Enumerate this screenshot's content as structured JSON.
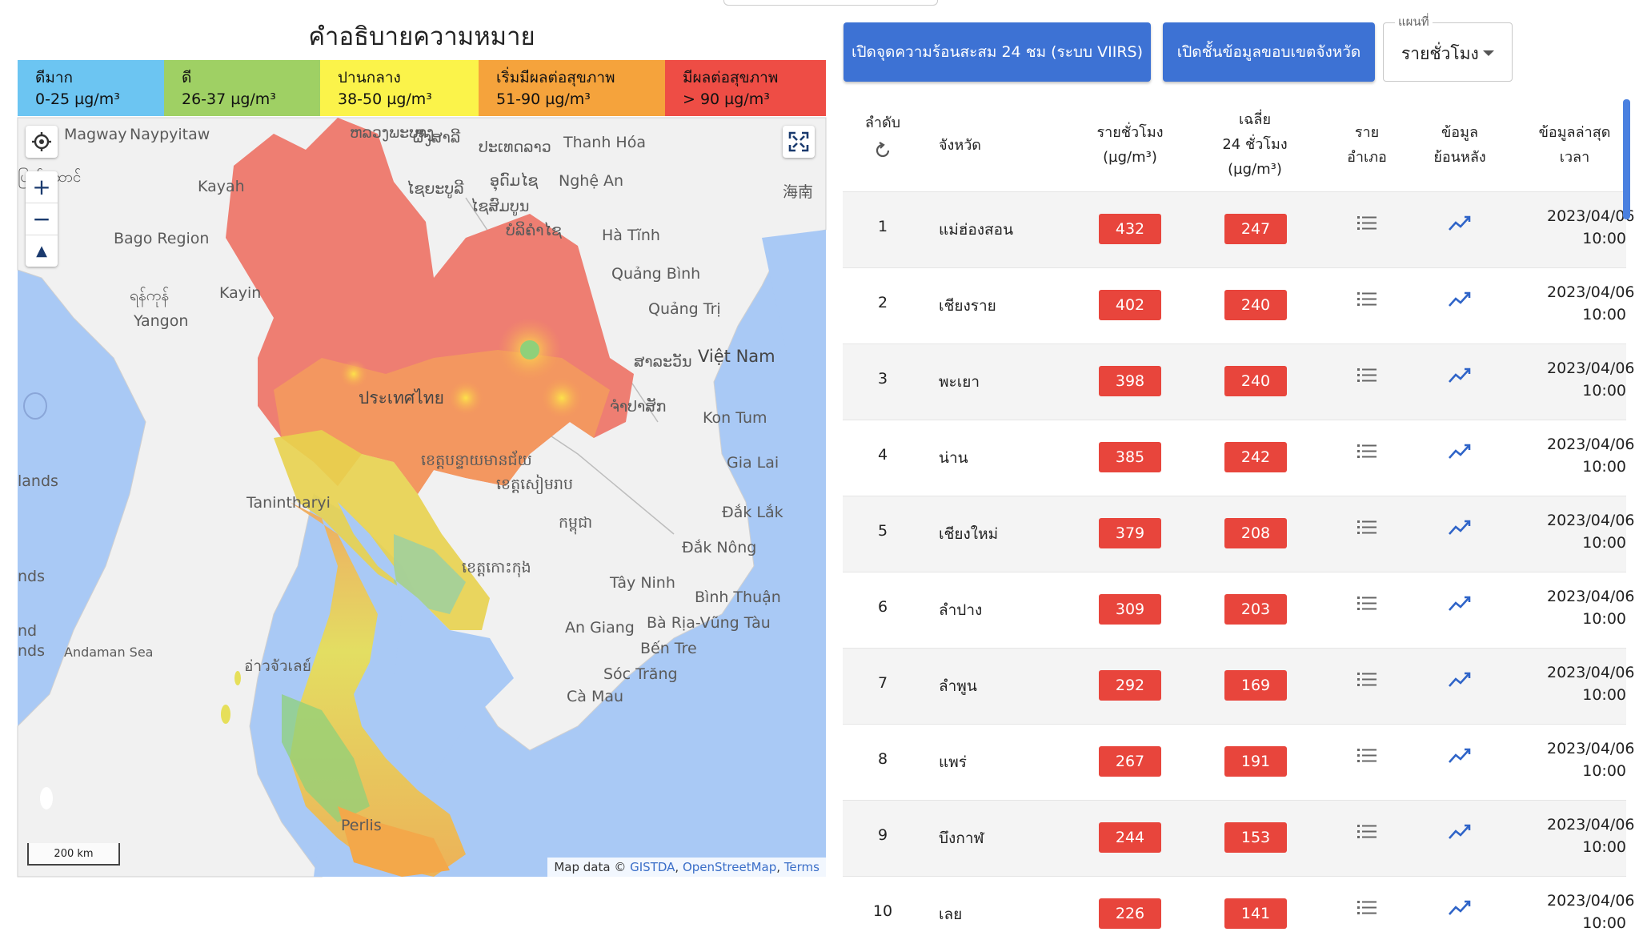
{
  "legend": {
    "title": "คำอธิบายความหมาย",
    "levels": [
      {
        "level": "ดีมาก",
        "range": "0-25 µg/m³",
        "color": "#6cc5f2"
      },
      {
        "level": "ดี",
        "range": "26-37 µg/m³",
        "color": "#9fd064"
      },
      {
        "level": "ปานกลาง",
        "range": "38-50 µg/m³",
        "color": "#fbf34a"
      },
      {
        "level": "เริ่มมีผลต่อสุขภาพ",
        "range": "51-90 µg/m³",
        "color": "#f5a33c"
      },
      {
        "level": "มีผลต่อสุขภาพ",
        "range": "> 90 µg/m³",
        "color": "#ee4d45"
      }
    ]
  },
  "map": {
    "labels": {
      "magway": "Magway",
      "naypyitaw": "Naypyitaw",
      "kayah": "Kayah",
      "bago": "Bago Region",
      "kayin": "Kayin",
      "yangon_my": "ရန်ကုန်",
      "yangon": "Yangon",
      "tanintharyi": "Tanintharyi",
      "andaman": "Andaman Sea",
      "lands1": "lands",
      "nds": "nds",
      "nd": "nd",
      "nds2": "nds",
      "burma_top": "ပြည်ထောင်",
      "thailand": "ประเทศไทย",
      "laos": "ປະເທດລາວ",
      "luangprabang": "ຫລວງພະບາງ",
      "xaiyabuli": "ໄຊຍະບູລີ",
      "phongsali": "ຜົ້ງສາລີ",
      "oudomxai": "ອຸດົມໄຊ",
      "xiengkhuang": "ໄຊສົມບູນ",
      "bolikhamxai": "ບໍລິຄຳໄຊ",
      "salavan": "ສາລະວັນ",
      "champasak": "ຈຳປາສັກ",
      "thanhhoa": "Thanh Hóa",
      "nghean": "Nghệ An",
      "hatinh": "Hà Tĩnh",
      "quangbinh": "Quảng Bình",
      "quangtri": "Quảng Trị",
      "vietnam": "Việt Nam",
      "kontum": "Kon Tum",
      "gialai": "Gia Lai",
      "daklak": "Đắk Lắk",
      "daknong": "Đắk Nông",
      "tayninh": "Tây Ninh",
      "binhthuan": "Bình Thuận",
      "angiang": "An Giang",
      "bariavungtau": "Bà Rịa-Vũng Tàu",
      "bentre": "Bến Tre",
      "soctrang": "Sóc Trăng",
      "camau": "Cà Mau",
      "hainan": "海南",
      "kh_banteay": "ខេត្តបន្ទាយមានជ័យ",
      "kh_siemreap": "ខេត្តសៀមរាប",
      "cambodia": "កម្ពុជា",
      "kh_koh": "ខេត្តកោះកុង",
      "chumphon": "อ่าวจัวเลย์",
      "perlis": "Perlis"
    },
    "attribution": {
      "prefix": "Map data ©",
      "gistda": "GISTDA",
      "osm": "OpenStreetMap",
      "terms": "Terms"
    },
    "scale": "200 km",
    "icons": {
      "locate": "crosshair-icon",
      "zoom_in": "plus-icon",
      "zoom_out": "minus-icon",
      "compass": "compass-icon",
      "fullscreen": "fullscreen-icon"
    }
  },
  "toolbar": {
    "hotspot_button": "เปิดจุดความร้อนสะสม 24 ชม (ระบบ VIIRS)",
    "boundary_button": "เปิดชั้นข้อมูลขอบเขตจังหวัด",
    "select_caption": "แผนที่",
    "select_value": "รายชั่วโมง"
  },
  "table": {
    "headers": {
      "rank": "ลำดับ",
      "province": "จังหวัด",
      "hourly_1": "รายชั่วโมง",
      "hourly_2": "(µg/m³)",
      "avg_1": "เฉลี่ย",
      "avg_2": "24 ชั่วโมง",
      "avg_3": "(µg/m³)",
      "district_1": "ราย",
      "district_2": "อำเภอ",
      "history_1": "ข้อมูล",
      "history_2": "ย้อนหลัง",
      "latest_1": "ข้อมูลล่าสุด",
      "latest_2": "เวลา"
    },
    "rows": [
      {
        "rank": "1",
        "province": "แม่ฮ่องสอน",
        "hourly": "432",
        "avg24": "247",
        "date": "2023/04/06",
        "time": "10:00"
      },
      {
        "rank": "2",
        "province": "เชียงราย",
        "hourly": "402",
        "avg24": "240",
        "date": "2023/04/06",
        "time": "10:00"
      },
      {
        "rank": "3",
        "province": "พะเยา",
        "hourly": "398",
        "avg24": "240",
        "date": "2023/04/06",
        "time": "10:00"
      },
      {
        "rank": "4",
        "province": "น่าน",
        "hourly": "385",
        "avg24": "242",
        "date": "2023/04/06",
        "time": "10:00"
      },
      {
        "rank": "5",
        "province": "เชียงใหม่",
        "hourly": "379",
        "avg24": "208",
        "date": "2023/04/06",
        "time": "10:00"
      },
      {
        "rank": "6",
        "province": "ลำปาง",
        "hourly": "309",
        "avg24": "203",
        "date": "2023/04/06",
        "time": "10:00"
      },
      {
        "rank": "7",
        "province": "ลำพูน",
        "hourly": "292",
        "avg24": "169",
        "date": "2023/04/06",
        "time": "10:00"
      },
      {
        "rank": "8",
        "province": "แพร่",
        "hourly": "267",
        "avg24": "191",
        "date": "2023/04/06",
        "time": "10:00"
      },
      {
        "rank": "9",
        "province": "บึงกาฬ",
        "hourly": "244",
        "avg24": "153",
        "date": "2023/04/06",
        "time": "10:00"
      },
      {
        "rank": "10",
        "province": "เลย",
        "hourly": "226",
        "avg24": "141",
        "date": "2023/04/06",
        "time": "10:00"
      }
    ]
  }
}
